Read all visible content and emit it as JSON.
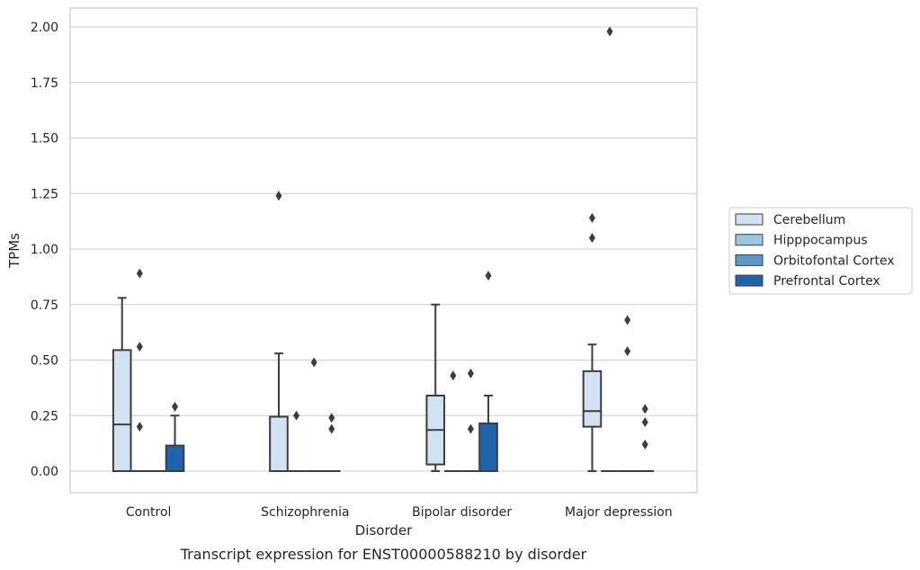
{
  "chart_data": {
    "type": "box",
    "title": "",
    "caption": "Transcript expression for ENST00000588210 by disorder",
    "xlabel": "Disorder",
    "ylabel": "TPMs",
    "ylim": [
      -0.1,
      2.08
    ],
    "yticks": [
      "0.00",
      "0.25",
      "0.50",
      "0.75",
      "1.00",
      "1.25",
      "1.50",
      "1.75",
      "2.00"
    ],
    "categories": [
      "Control",
      "Schizophrenia",
      "Bipolar disorder",
      "Major depression"
    ],
    "grid": "horizontal",
    "legend_position": "right",
    "series": [
      {
        "name": "Cerebellum",
        "color": "#d1e2f2",
        "boxes": [
          {
            "whislo": 0.0,
            "q1": 0.0,
            "med": 0.21,
            "q3": 0.545,
            "whishi": 0.78,
            "fliers": []
          },
          {
            "whislo": 0.0,
            "q1": 0.0,
            "med": 0.0,
            "q3": 0.245,
            "whishi": 0.53,
            "fliers": [
              1.24
            ]
          },
          {
            "whislo": 0.0,
            "q1": 0.03,
            "med": 0.185,
            "q3": 0.34,
            "whishi": 0.75,
            "fliers": []
          },
          {
            "whislo": 0.0,
            "q1": 0.2,
            "med": 0.27,
            "q3": 0.45,
            "whishi": 0.57,
            "fliers": [
              1.05,
              1.14
            ]
          }
        ]
      },
      {
        "name": "Hipppocampus",
        "color": "#9ac8e0",
        "boxes": [
          {
            "whislo": 0.0,
            "q1": 0.0,
            "med": 0.0,
            "q3": 0.0,
            "whishi": 0.0,
            "fliers": [
              0.2,
              0.56,
              0.89
            ]
          },
          {
            "whislo": 0.0,
            "q1": 0.0,
            "med": 0.0,
            "q3": 0.0,
            "whishi": 0.0,
            "fliers": [
              0.25
            ]
          },
          {
            "whislo": 0.0,
            "q1": 0.0,
            "med": 0.0,
            "q3": 0.0,
            "whishi": 0.0,
            "fliers": [
              0.43
            ]
          },
          {
            "whislo": 0.0,
            "q1": 0.0,
            "med": 0.0,
            "q3": 0.0,
            "whishi": 0.0,
            "fliers": [
              1.98
            ]
          }
        ]
      },
      {
        "name": "Orbitofontal Cortex",
        "color": "#5a9ac9",
        "boxes": [
          {
            "whislo": 0.0,
            "q1": 0.0,
            "med": 0.0,
            "q3": 0.0,
            "whishi": 0.0,
            "fliers": []
          },
          {
            "whislo": 0.0,
            "q1": 0.0,
            "med": 0.0,
            "q3": 0.0,
            "whishi": 0.0,
            "fliers": [
              0.49
            ]
          },
          {
            "whislo": 0.0,
            "q1": 0.0,
            "med": 0.0,
            "q3": 0.0,
            "whishi": 0.0,
            "fliers": [
              0.19,
              0.44
            ]
          },
          {
            "whislo": 0.0,
            "q1": 0.0,
            "med": 0.0,
            "q3": 0.0,
            "whishi": 0.0,
            "fliers": [
              0.54,
              0.68
            ]
          }
        ]
      },
      {
        "name": "Prefrontal Cortex",
        "color": "#2163aa",
        "boxes": [
          {
            "whislo": 0.0,
            "q1": 0.0,
            "med": 0.0,
            "q3": 0.115,
            "whishi": 0.25,
            "fliers": [
              0.29
            ]
          },
          {
            "whislo": 0.0,
            "q1": 0.0,
            "med": 0.0,
            "q3": 0.0,
            "whishi": 0.0,
            "fliers": [
              0.19,
              0.24
            ]
          },
          {
            "whislo": 0.0,
            "q1": 0.0,
            "med": 0.0,
            "q3": 0.215,
            "whishi": 0.34,
            "fliers": [
              0.88
            ]
          },
          {
            "whislo": 0.0,
            "q1": 0.0,
            "med": 0.0,
            "q3": 0.0,
            "whishi": 0.0,
            "fliers": [
              0.12,
              0.22,
              0.28
            ]
          }
        ]
      }
    ]
  }
}
